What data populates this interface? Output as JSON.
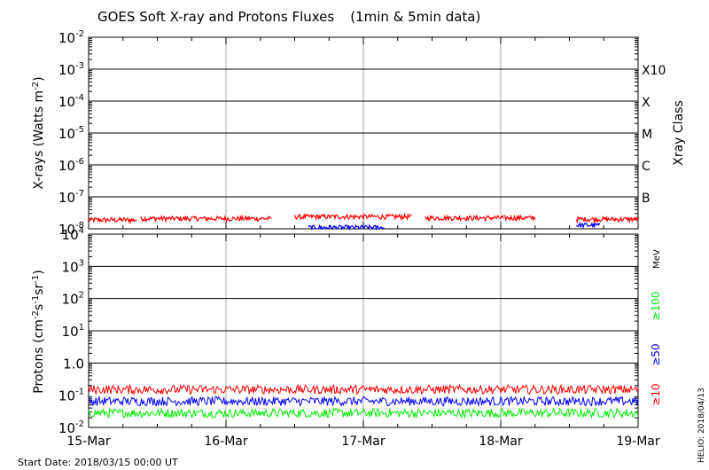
{
  "chart_data": [
    {
      "type": "line",
      "title": "GOES Soft X-ray and Protons Fluxes",
      "subtitle": "(1min & 5min data)",
      "ylabel": "X-rays (Watts m",
      "ylabel_sup": "-2",
      "ylabel_close": ")",
      "yscale": "log",
      "ylim": [
        1e-08,
        0.01
      ],
      "y_ticks": [
        {
          "base": "10",
          "exp": "-2"
        },
        {
          "base": "10",
          "exp": "-3"
        },
        {
          "base": "10",
          "exp": "-4"
        },
        {
          "base": "10",
          "exp": "-5"
        },
        {
          "base": "10",
          "exp": "-6"
        },
        {
          "base": "10",
          "exp": "-7"
        },
        {
          "base": "10",
          "exp": "-8"
        }
      ],
      "right_axis_label": "Xray Class",
      "classes": [
        "X10",
        "X",
        "M",
        "C",
        "B"
      ],
      "x": [
        "15-Mar",
        "16-Mar",
        "17-Mar",
        "18-Mar",
        "19-Mar"
      ],
      "xlim": [
        "2018-03-15 00:00",
        "2018-03-19 00:00"
      ],
      "grid": true,
      "series": [
        {
          "color": "#ff0000",
          "segments": [
            {
              "t": [
                0.0,
                0.35
              ],
              "level": 1.9e-08
            },
            {
              "t": [
                0.38,
                1.33
              ],
              "level": 2.1e-08
            },
            {
              "t": [
                1.5,
                2.35
              ],
              "level": 2.4e-08
            },
            {
              "t": [
                2.45,
                3.25
              ],
              "level": 2.2e-08
            },
            {
              "t": [
                3.55,
                4.0
              ],
              "level": 2e-08
            }
          ]
        },
        {
          "color": "#0000ff",
          "segments": [
            {
              "t": [
                1.6,
                2.15
              ],
              "level": 1.1e-08
            },
            {
              "t": [
                3.55,
                3.72
              ],
              "level": 1.3e-08
            }
          ]
        }
      ]
    },
    {
      "type": "line",
      "ylabel": "Protons (cm",
      "ylabel_sup1": "-2",
      "ylabel_mid": "s",
      "ylabel_sup2": "-1",
      "ylabel_mid2": "sr",
      "ylabel_sup3": "-1",
      "ylabel_close": ")",
      "yscale": "log",
      "ylim": [
        0.01,
        10000
      ],
      "y_ticks": [
        {
          "base": "10",
          "exp": "4"
        },
        {
          "base": "10",
          "exp": "3"
        },
        {
          "base": "10",
          "exp": "2"
        },
        {
          "base": "10",
          "exp": "1"
        },
        {
          "base": "10",
          "exp": "0",
          "pre": "1",
          "label": "1.0"
        },
        {
          "base": "10",
          "exp": "-1"
        },
        {
          "base": "10",
          "exp": "-2"
        }
      ],
      "threshold_line": 10,
      "unit_label": "MeV",
      "x": [
        "15-Mar",
        "16-Mar",
        "17-Mar",
        "18-Mar",
        "19-Mar"
      ],
      "xlim": [
        "2018-03-15 00:00",
        "2018-03-19 00:00"
      ],
      "grid": true,
      "series": [
        {
          "name": "≥10",
          "color": "#ff0000",
          "level": 0.15
        },
        {
          "name": "≥50",
          "color": "#0000ff",
          "level": 0.065
        },
        {
          "name": "≥100",
          "color": "#00ee00",
          "level": 0.028
        }
      ]
    }
  ],
  "footer": {
    "start_date": "Start Date: 2018/03/15 00:00 UT",
    "credit": "HELIO: 2018/04/13"
  }
}
